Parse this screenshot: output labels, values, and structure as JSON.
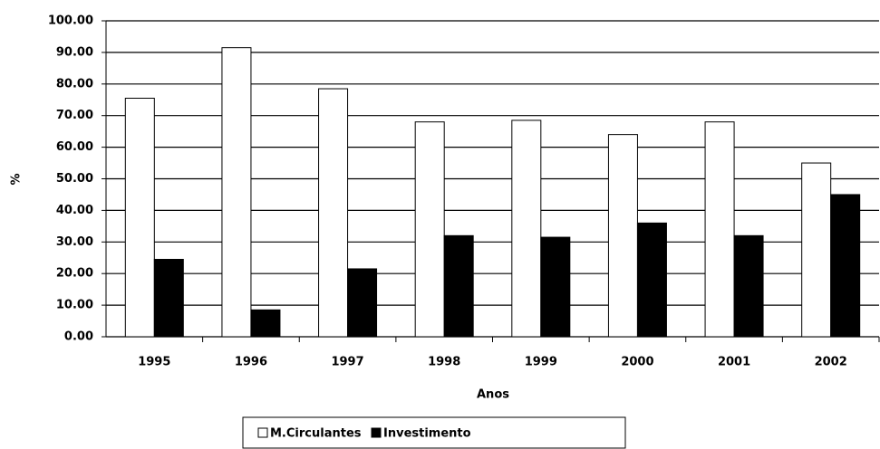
{
  "chart_data": {
    "type": "bar",
    "x_label": "Anos",
    "y_label": "%",
    "categories": [
      "1995",
      "1996",
      "1997",
      "1998",
      "1999",
      "2000",
      "2001",
      "2002"
    ],
    "series": [
      {
        "name": "M.Circulantes",
        "color": "#ffffff",
        "values": [
          75.5,
          91.5,
          78.5,
          68,
          68.5,
          64,
          68,
          55
        ]
      },
      {
        "name": "Investimento",
        "color": "#000000",
        "values": [
          24.5,
          8.5,
          21.5,
          32,
          31.5,
          36,
          32,
          45
        ]
      }
    ],
    "ylim": [
      0,
      100
    ],
    "yticks": [
      {
        "value": 0,
        "label": "0.00"
      },
      {
        "value": 10,
        "label": "10.00"
      },
      {
        "value": 20,
        "label": "20.00"
      },
      {
        "value": 30,
        "label": "30.00"
      },
      {
        "value": 40,
        "label": "40.00"
      },
      {
        "value": 50,
        "label": "50.00"
      },
      {
        "value": 60,
        "label": "60.00"
      },
      {
        "value": 70,
        "label": "70.00"
      },
      {
        "value": 80,
        "label": "80.00"
      },
      {
        "value": 90,
        "label": "90.00"
      },
      {
        "value": 100,
        "label": "100.00"
      }
    ],
    "grid": true
  }
}
